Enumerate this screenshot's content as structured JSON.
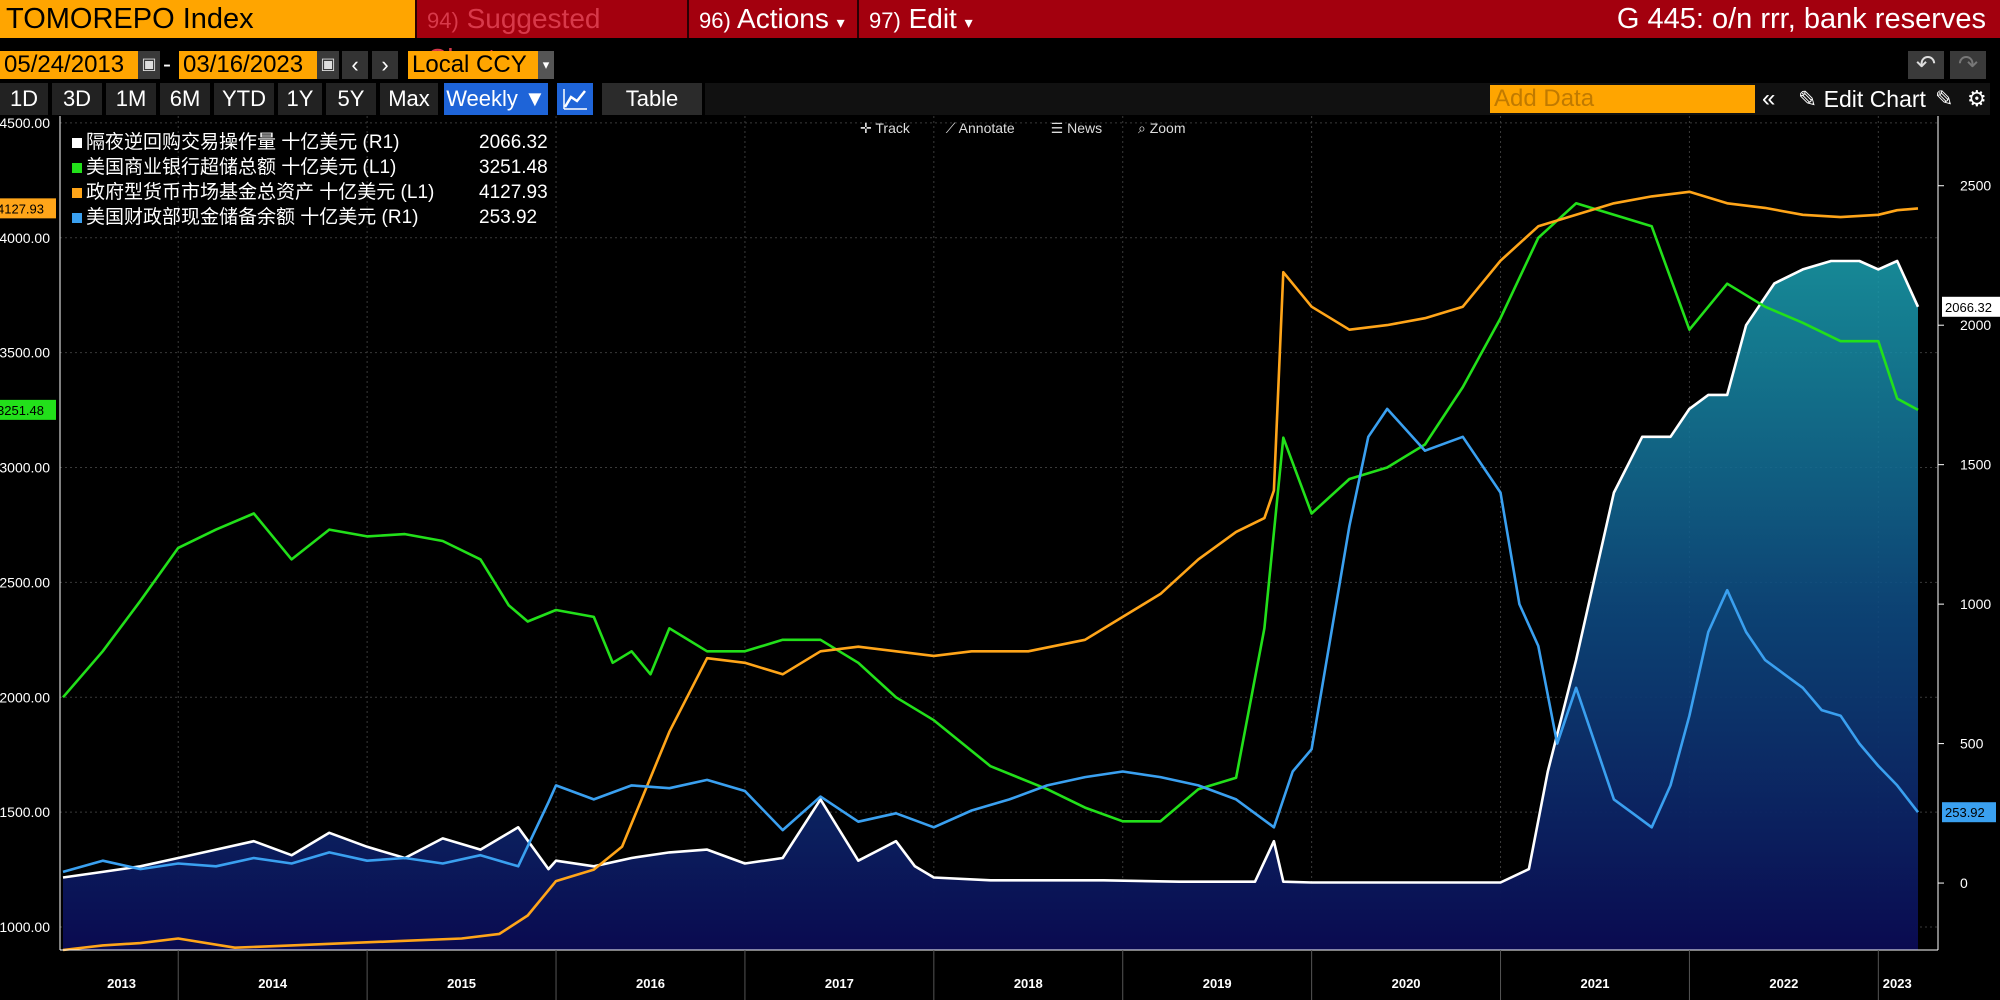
{
  "titlebar": {
    "ticker": "TOMOREPO Index",
    "menu": [
      {
        "num": "94)",
        "label": "Suggested Charts",
        "arrow": ""
      },
      {
        "num": "96)",
        "label": "Actions",
        "arrow": "▾"
      },
      {
        "num": "97)",
        "label": "Edit",
        "arrow": "▾"
      }
    ],
    "right_title": "G 445: o/n rrr, bank reserves"
  },
  "controls": {
    "start_date": "05/24/2013",
    "date_sep": "-",
    "end_date": "03/16/2023",
    "currency": "Local CCY",
    "periods": [
      "1D",
      "3D",
      "1M",
      "6M",
      "YTD",
      "1Y",
      "5Y",
      "Max"
    ],
    "frequency": "Weekly ▼",
    "table_label": "Table",
    "add_data_placeholder": "Add Data",
    "edit_chart_label": "Edit Chart"
  },
  "chart_tools": [
    "Track",
    "Annotate",
    "News",
    "Zoom"
  ],
  "chart_data": {
    "type": "line",
    "x_start": "2013-05-24",
    "x_end": "2023-03-16",
    "x_tick_labels": [
      "2013",
      "2014",
      "2015",
      "2016",
      "2017",
      "2018",
      "2019",
      "2020",
      "2021",
      "2022",
      "2023"
    ],
    "left_axis": {
      "ticks": [
        "1000.00",
        "1500.00",
        "2000.00",
        "2500.00",
        "3000.00",
        "3500.00",
        "4000.00",
        "4500.00"
      ],
      "ylim": [
        900,
        4530
      ]
    },
    "right_axis": {
      "ticks": [
        "0",
        "500",
        "1000",
        "1500",
        "2000",
        "2500"
      ],
      "ylim": [
        -240,
        2750
      ]
    },
    "legend": [
      {
        "label": "隔夜逆回购交易操作量 十亿美元 (R1)",
        "value": "2066.32",
        "color": "#ffffff"
      },
      {
        "label": "美国商业银行超储总额 十亿美元 (L1)",
        "value": "3251.48",
        "color": "#22e01a"
      },
      {
        "label": "政府型货币市场基金总资产 十亿美元 (L1)",
        "value": "4127.93",
        "color": "#ffa519"
      },
      {
        "label": "美国财政部现金储备余额 十亿美元 (R1)",
        "value": "253.92",
        "color": "#3aa0f0"
      }
    ],
    "last_value_tags": {
      "left": [
        "4127.93",
        "3251.48"
      ],
      "right": [
        "2066.32",
        "253.92"
      ]
    },
    "series": [
      {
        "name": "隔夜逆回购交易操作量 十亿美元 (R1)",
        "axis": "right",
        "color": "#ffffff",
        "x": [
          2013.39,
          2013.6,
          2013.8,
          2014.0,
          2014.2,
          2014.4,
          2014.6,
          2014.8,
          2015.0,
          2015.2,
          2015.4,
          2015.6,
          2015.8,
          2015.96,
          2016.0,
          2016.2,
          2016.4,
          2016.6,
          2016.8,
          2017.0,
          2017.2,
          2017.4,
          2017.6,
          2017.8,
          2017.9,
          2018.0,
          2018.3,
          2018.6,
          2018.9,
          2019.3,
          2019.7,
          2019.8,
          2019.85,
          2020.0,
          2020.5,
          2021.0,
          2021.15,
          2021.25,
          2021.4,
          2021.5,
          2021.6,
          2021.75,
          2021.9,
          2022.0,
          2022.1,
          2022.2,
          2022.3,
          2022.45,
          2022.6,
          2022.75,
          2022.9,
          2023.0,
          2023.1,
          2023.21
        ],
        "values": [
          20,
          40,
          60,
          90,
          120,
          150,
          100,
          180,
          130,
          90,
          160,
          120,
          200,
          50,
          80,
          60,
          90,
          110,
          120,
          70,
          90,
          300,
          80,
          150,
          60,
          20,
          10,
          10,
          10,
          5,
          5,
          150,
          5,
          2,
          2,
          2,
          50,
          400,
          800,
          1100,
          1400,
          1600,
          1600,
          1700,
          1750,
          1750,
          2000,
          2150,
          2200,
          2230,
          2230,
          2200,
          2230,
          2066
        ]
      },
      {
        "name": "美国商业银行超储总额 十亿美元 (L1)",
        "axis": "left",
        "color": "#22e01a",
        "x": [
          2013.39,
          2013.6,
          2013.8,
          2014.0,
          2014.2,
          2014.4,
          2014.6,
          2014.8,
          2015.0,
          2015.2,
          2015.4,
          2015.6,
          2015.75,
          2015.85,
          2016.0,
          2016.2,
          2016.3,
          2016.4,
          2016.5,
          2016.6,
          2016.8,
          2017.0,
          2017.2,
          2017.4,
          2017.6,
          2017.8,
          2018.0,
          2018.3,
          2018.6,
          2018.8,
          2019.0,
          2019.2,
          2019.4,
          2019.6,
          2019.75,
          2019.85,
          2020.0,
          2020.2,
          2020.4,
          2020.6,
          2020.8,
          2021.0,
          2021.2,
          2021.4,
          2021.6,
          2021.8,
          2022.0,
          2022.2,
          2022.4,
          2022.6,
          2022.8,
          2023.0,
          2023.1,
          2023.21
        ],
        "values": [
          2000,
          2200,
          2420,
          2650,
          2730,
          2800,
          2600,
          2730,
          2700,
          2710,
          2680,
          2600,
          2400,
          2330,
          2380,
          2350,
          2150,
          2200,
          2100,
          2300,
          2200,
          2200,
          2250,
          2250,
          2150,
          2000,
          1900,
          1700,
          1600,
          1520,
          1460,
          1460,
          1600,
          1650,
          2300,
          3130,
          2800,
          2950,
          3000,
          3100,
          3350,
          3650,
          4000,
          4150,
          4100,
          4050,
          3600,
          3800,
          3700,
          3630,
          3550,
          3550,
          3300,
          3251
        ]
      },
      {
        "name": "政府型货币市场基金总资产 十亿美元 (L1)",
        "axis": "left",
        "color": "#ffa519",
        "x": [
          2013.39,
          2013.6,
          2013.8,
          2014.0,
          2014.3,
          2014.6,
          2014.9,
          2015.2,
          2015.5,
          2015.7,
          2015.85,
          2016.0,
          2016.2,
          2016.35,
          2016.45,
          2016.6,
          2016.8,
          2017.0,
          2017.2,
          2017.4,
          2017.6,
          2017.8,
          2018.0,
          2018.2,
          2018.5,
          2018.8,
          2019.0,
          2019.2,
          2019.4,
          2019.6,
          2019.75,
          2019.8,
          2019.85,
          2020.0,
          2020.2,
          2020.4,
          2020.6,
          2020.8,
          2021.0,
          2021.2,
          2021.4,
          2021.6,
          2021.8,
          2022.0,
          2022.2,
          2022.4,
          2022.6,
          2022.8,
          2023.0,
          2023.1,
          2023.21
        ],
        "values": [
          900,
          920,
          930,
          950,
          910,
          920,
          930,
          940,
          950,
          970,
          1050,
          1200,
          1250,
          1350,
          1550,
          1850,
          2170,
          2150,
          2100,
          2200,
          2220,
          2200,
          2180,
          2200,
          2200,
          2250,
          2350,
          2450,
          2600,
          2720,
          2780,
          2900,
          3850,
          3700,
          3600,
          3620,
          3650,
          3700,
          3900,
          4050,
          4100,
          4150,
          4180,
          4200,
          4150,
          4130,
          4100,
          4090,
          4100,
          4120,
          4128
        ]
      },
      {
        "name": "美国财政部现金储备余额 十亿美元 (R1)",
        "axis": "right",
        "color": "#3aa0f0",
        "x": [
          2013.39,
          2013.6,
          2013.8,
          2014.0,
          2014.2,
          2014.4,
          2014.6,
          2014.8,
          2015.0,
          2015.2,
          2015.4,
          2015.6,
          2015.8,
          2015.96,
          2016.0,
          2016.2,
          2016.4,
          2016.6,
          2016.8,
          2017.0,
          2017.2,
          2017.4,
          2017.6,
          2017.8,
          2018.0,
          2018.2,
          2018.4,
          2018.6,
          2018.8,
          2019.0,
          2019.2,
          2019.4,
          2019.6,
          2019.8,
          2019.9,
          2020.0,
          2020.2,
          2020.3,
          2020.4,
          2020.6,
          2020.8,
          2021.0,
          2021.1,
          2021.2,
          2021.3,
          2021.4,
          2021.5,
          2021.6,
          2021.7,
          2021.8,
          2021.9,
          2022.0,
          2022.1,
          2022.2,
          2022.3,
          2022.4,
          2022.5,
          2022.6,
          2022.7,
          2022.8,
          2022.9,
          2023.0,
          2023.1,
          2023.21
        ],
        "values": [
          40,
          80,
          50,
          70,
          60,
          90,
          70,
          110,
          80,
          90,
          70,
          100,
          60,
          290,
          350,
          300,
          350,
          340,
          370,
          330,
          190,
          310,
          220,
          250,
          200,
          260,
          300,
          350,
          380,
          400,
          380,
          350,
          300,
          200,
          400,
          480,
          1280,
          1600,
          1700,
          1550,
          1600,
          1400,
          1000,
          850,
          500,
          700,
          500,
          300,
          250,
          200,
          350,
          600,
          900,
          1050,
          900,
          800,
          750,
          700,
          620,
          600,
          500,
          420,
          350,
          254
        ]
      }
    ]
  }
}
